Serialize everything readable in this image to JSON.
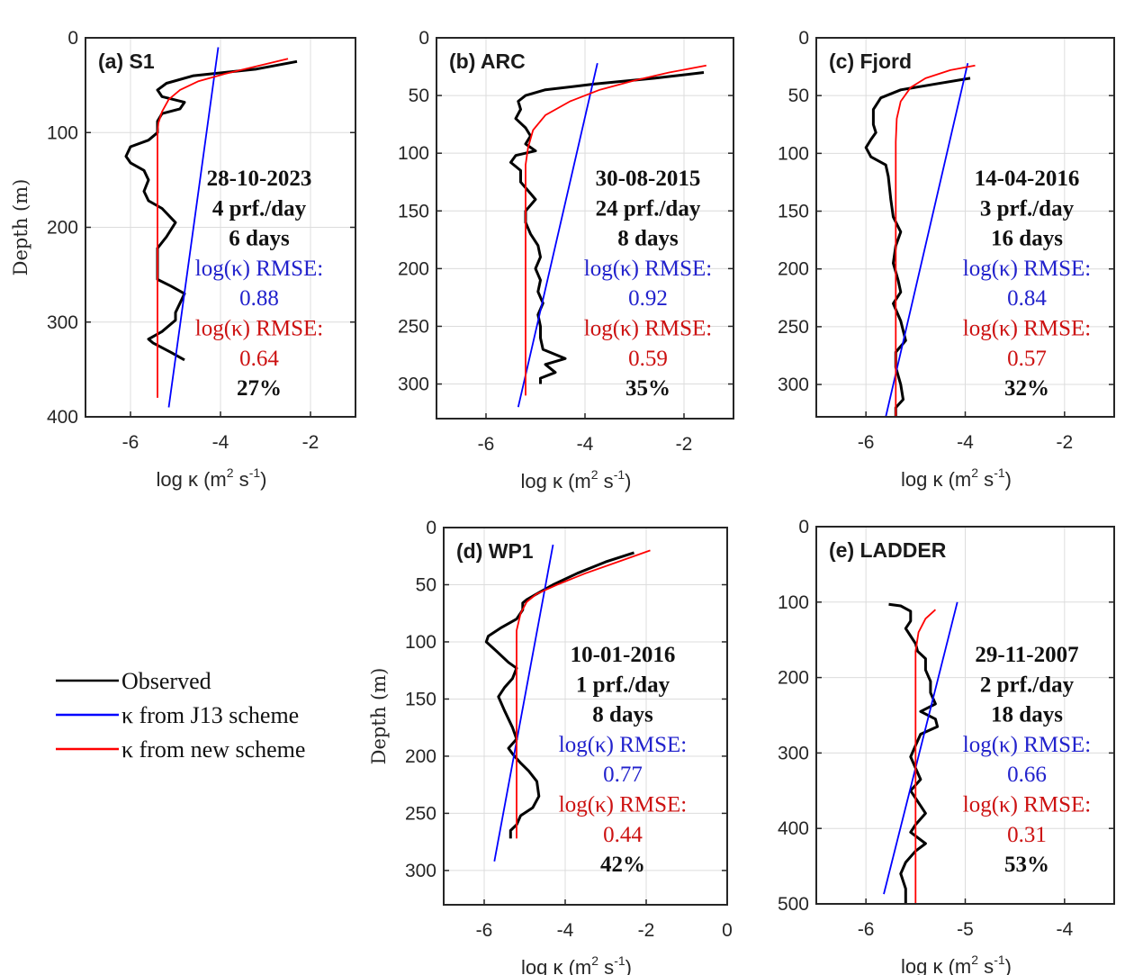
{
  "figure": {
    "legend": [
      {
        "label": "Observed",
        "color": "#000000"
      },
      {
        "label": "κ from J13 scheme",
        "color": "#0000ff"
      },
      {
        "label": "κ from new scheme",
        "color": "#ff0000"
      }
    ]
  },
  "chart_data": [
    {
      "type": "line",
      "title": "(a) S1",
      "xlabel": "log κ (m² s⁻¹)",
      "ylabel": "Depth (m)",
      "xlim": [
        -7,
        -1
      ],
      "ylim": [
        0,
        400
      ],
      "y_reversed": true,
      "xticks": [
        -6,
        -4,
        -2
      ],
      "yticks": [
        0,
        100,
        200,
        300,
        400
      ],
      "grid": true,
      "annotation": {
        "date": "28-10-2023",
        "rate": "4 prf./day",
        "duration": "6 days",
        "rmse_label": "log(κ) RMSE:",
        "rmse_j13": "0.88",
        "rmse_new": "0.64",
        "improvement": "27%"
      },
      "series": [
        {
          "name": "Observed",
          "color": "#000000",
          "points": [
            [
              -2.3,
              25
            ],
            [
              -3.2,
              33
            ],
            [
              -4.6,
              40
            ],
            [
              -5.2,
              48
            ],
            [
              -5.4,
              55
            ],
            [
              -5.3,
              62
            ],
            [
              -4.8,
              68
            ],
            [
              -4.9,
              75
            ],
            [
              -5.3,
              80
            ],
            [
              -5.4,
              88
            ],
            [
              -5.4,
              100
            ],
            [
              -5.6,
              108
            ],
            [
              -6.0,
              115
            ],
            [
              -6.1,
              125
            ],
            [
              -6.0,
              132
            ],
            [
              -5.7,
              140
            ],
            [
              -5.6,
              150
            ],
            [
              -5.7,
              162
            ],
            [
              -5.6,
              172
            ],
            [
              -5.3,
              180
            ],
            [
              -5.0,
              195
            ],
            [
              -5.2,
              210
            ],
            [
              -5.4,
              222
            ],
            [
              -5.4,
              240
            ],
            [
              -5.4,
              255
            ],
            [
              -5.1,
              262
            ],
            [
              -4.8,
              270
            ],
            [
              -4.9,
              280
            ],
            [
              -5.0,
              290
            ],
            [
              -5.0,
              298
            ],
            [
              -5.3,
              310
            ],
            [
              -5.6,
              318
            ],
            [
              -5.5,
              322
            ],
            [
              -5.1,
              332
            ],
            [
              -4.8,
              340
            ]
          ]
        },
        {
          "name": "κ from J13 scheme",
          "color": "#0000ff",
          "points": [
            [
              -4.05,
              10
            ],
            [
              -5.15,
              390
            ]
          ]
        },
        {
          "name": "κ from new scheme",
          "color": "#ff0000",
          "points": [
            [
              -2.5,
              22
            ],
            [
              -3.2,
              30
            ],
            [
              -3.9,
              38
            ],
            [
              -4.5,
              46
            ],
            [
              -4.9,
              55
            ],
            [
              -5.15,
              65
            ],
            [
              -5.3,
              78
            ],
            [
              -5.38,
              90
            ],
            [
              -5.4,
              100
            ],
            [
              -5.4,
              380
            ]
          ]
        }
      ]
    },
    {
      "type": "line",
      "title": "(b) ARC",
      "xlabel": "log κ (m² s⁻¹)",
      "ylabel": "",
      "xlim": [
        -7,
        -1
      ],
      "ylim": [
        0,
        330
      ],
      "y_reversed": true,
      "xticks": [
        -6,
        -4,
        -2
      ],
      "yticks": [
        0,
        50,
        100,
        150,
        200,
        250,
        300
      ],
      "grid": true,
      "annotation": {
        "date": "30-08-2015",
        "rate": "24 prf./day",
        "duration": "8 days",
        "rmse_label": "log(κ) RMSE:",
        "rmse_j13": "0.92",
        "rmse_new": "0.59",
        "improvement": "35%"
      },
      "series": [
        {
          "name": "Observed",
          "color": "#000000",
          "points": [
            [
              -1.6,
              30
            ],
            [
              -2.6,
              35
            ],
            [
              -3.8,
              40
            ],
            [
              -4.8,
              45
            ],
            [
              -5.2,
              50
            ],
            [
              -5.35,
              55
            ],
            [
              -5.3,
              62
            ],
            [
              -5.4,
              70
            ],
            [
              -5.2,
              78
            ],
            [
              -5.1,
              85
            ],
            [
              -5.2,
              92
            ],
            [
              -5.0,
              98
            ],
            [
              -5.4,
              102
            ],
            [
              -5.5,
              108
            ],
            [
              -5.3,
              115
            ],
            [
              -5.3,
              125
            ],
            [
              -5.1,
              135
            ],
            [
              -5.0,
              140
            ],
            [
              -5.2,
              150
            ],
            [
              -5.2,
              160
            ],
            [
              -5.1,
              170
            ],
            [
              -4.95,
              180
            ],
            [
              -4.9,
              190
            ],
            [
              -5.0,
              200
            ],
            [
              -4.9,
              210
            ],
            [
              -4.95,
              220
            ],
            [
              -4.85,
              230
            ],
            [
              -4.95,
              240
            ],
            [
              -4.9,
              250
            ],
            [
              -4.9,
              260
            ],
            [
              -4.85,
              270
            ],
            [
              -4.4,
              278
            ],
            [
              -4.8,
              283
            ],
            [
              -4.6,
              290
            ],
            [
              -4.9,
              295
            ],
            [
              -4.9,
              300
            ]
          ]
        },
        {
          "name": "κ from J13 scheme",
          "color": "#0000ff",
          "points": [
            [
              -3.75,
              22
            ],
            [
              -5.35,
              320
            ]
          ]
        },
        {
          "name": "κ from new scheme",
          "color": "#ff0000",
          "points": [
            [
              -1.55,
              24
            ],
            [
              -2.3,
              30
            ],
            [
              -3.0,
              37
            ],
            [
              -3.7,
              45
            ],
            [
              -4.3,
              55
            ],
            [
              -4.8,
              67
            ],
            [
              -5.05,
              80
            ],
            [
              -5.15,
              95
            ],
            [
              -5.2,
              110
            ],
            [
              -5.2,
              310
            ]
          ]
        }
      ]
    },
    {
      "type": "line",
      "title": "(c) Fjord",
      "xlabel": "log κ (m² s⁻¹)",
      "ylabel": "",
      "xlim": [
        -7,
        -1
      ],
      "ylim": [
        0,
        328
      ],
      "y_reversed": true,
      "xticks": [
        -6,
        -4,
        -2
      ],
      "yticks": [
        0,
        50,
        100,
        150,
        200,
        250,
        300
      ],
      "grid": true,
      "annotation": {
        "date": "14-04-2016",
        "rate": "3 prf./day",
        "duration": "16 days",
        "rmse_label": "log(κ) RMSE:",
        "rmse_j13": "0.84",
        "rmse_new": "0.57",
        "improvement": "32%"
      },
      "series": [
        {
          "name": "Observed",
          "color": "#000000",
          "points": [
            [
              -3.9,
              35
            ],
            [
              -4.6,
              40
            ],
            [
              -5.3,
              45
            ],
            [
              -5.7,
              52
            ],
            [
              -5.85,
              62
            ],
            [
              -5.85,
              75
            ],
            [
              -5.8,
              82
            ],
            [
              -5.9,
              88
            ],
            [
              -6.0,
              95
            ],
            [
              -5.9,
              103
            ],
            [
              -5.6,
              110
            ],
            [
              -5.55,
              120
            ],
            [
              -5.5,
              140
            ],
            [
              -5.45,
              155
            ],
            [
              -5.3,
              168
            ],
            [
              -5.4,
              180
            ],
            [
              -5.45,
              195
            ],
            [
              -5.35,
              210
            ],
            [
              -5.3,
              220
            ],
            [
              -5.45,
              230
            ],
            [
              -5.3,
              245
            ],
            [
              -5.2,
              262
            ],
            [
              -5.4,
              272
            ],
            [
              -5.4,
              285
            ],
            [
              -5.3,
              300
            ],
            [
              -5.25,
              313
            ],
            [
              -5.4,
              320
            ],
            [
              -5.4,
              328
            ]
          ]
        },
        {
          "name": "κ from J13 scheme",
          "color": "#0000ff",
          "points": [
            [
              -3.95,
              22
            ],
            [
              -5.6,
              328
            ]
          ]
        },
        {
          "name": "κ from new scheme",
          "color": "#ff0000",
          "points": [
            [
              -3.8,
              24
            ],
            [
              -4.3,
              28
            ],
            [
              -4.8,
              35
            ],
            [
              -5.1,
              43
            ],
            [
              -5.3,
              55
            ],
            [
              -5.38,
              70
            ],
            [
              -5.4,
              90
            ],
            [
              -5.4,
              328
            ]
          ]
        }
      ]
    },
    {
      "type": "line",
      "title": "(d) WP1",
      "xlabel": "log κ (m² s⁻¹)",
      "ylabel": "Depth (m)",
      "xlim": [
        -7,
        0
      ],
      "ylim": [
        0,
        330
      ],
      "y_reversed": true,
      "xticks": [
        -6,
        -4,
        -2,
        0
      ],
      "yticks": [
        0,
        50,
        100,
        150,
        200,
        250,
        300
      ],
      "grid": true,
      "annotation": {
        "date": "10-01-2016",
        "rate": "1 prf./day",
        "duration": "8 days",
        "rmse_label": "log(κ) RMSE:",
        "rmse_j13": "0.77",
        "rmse_new": "0.44",
        "improvement": "42%"
      },
      "series": [
        {
          "name": "Observed",
          "color": "#000000",
          "points": [
            [
              -2.3,
              22
            ],
            [
              -3.0,
              30
            ],
            [
              -3.7,
              40
            ],
            [
              -4.3,
              50
            ],
            [
              -4.7,
              58
            ],
            [
              -4.95,
              63
            ],
            [
              -5.05,
              66
            ],
            [
              -5.05,
              72
            ],
            [
              -5.2,
              80
            ],
            [
              -5.6,
              88
            ],
            [
              -5.9,
              95
            ],
            [
              -5.95,
              100
            ],
            [
              -5.7,
              108
            ],
            [
              -5.4,
              118
            ],
            [
              -5.2,
              123
            ],
            [
              -5.3,
              132
            ],
            [
              -5.5,
              140
            ],
            [
              -5.65,
              148
            ],
            [
              -5.5,
              160
            ],
            [
              -5.3,
              175
            ],
            [
              -5.2,
              185
            ],
            [
              -5.4,
              193
            ],
            [
              -5.3,
              198
            ],
            [
              -5.1,
              206
            ],
            [
              -4.9,
              213
            ],
            [
              -4.7,
              222
            ],
            [
              -4.65,
              235
            ],
            [
              -4.8,
              245
            ],
            [
              -5.1,
              252
            ],
            [
              -5.2,
              260
            ],
            [
              -5.35,
              265
            ],
            [
              -5.35,
              272
            ]
          ]
        },
        {
          "name": "κ from J13 scheme",
          "color": "#0000ff",
          "points": [
            [
              -4.3,
              15
            ],
            [
              -5.75,
              292
            ]
          ]
        },
        {
          "name": "κ from new scheme",
          "color": "#ff0000",
          "points": [
            [
              -1.9,
              20
            ],
            [
              -2.7,
              30
            ],
            [
              -3.5,
              40
            ],
            [
              -4.2,
              50
            ],
            [
              -4.7,
              58
            ],
            [
              -4.95,
              65
            ],
            [
              -5.1,
              75
            ],
            [
              -5.2,
              90
            ],
            [
              -5.2,
              272
            ]
          ]
        }
      ]
    },
    {
      "type": "line",
      "title": "(e) LADDER",
      "xlabel": "log κ (m² s⁻¹)",
      "ylabel": "",
      "xlim": [
        -6.5,
        -3.5
      ],
      "ylim": [
        0,
        500
      ],
      "y_reversed": true,
      "xticks": [
        -6,
        -5,
        -4
      ],
      "yticks": [
        0,
        100,
        200,
        300,
        400,
        500
      ],
      "grid": true,
      "annotation": {
        "date": "29-11-2007",
        "rate": "2 prf./day",
        "duration": "18 days",
        "rmse_label": "log(κ) RMSE:",
        "rmse_j13": "0.66",
        "rmse_new": "0.31",
        "improvement": "53%"
      },
      "series": [
        {
          "name": "Observed",
          "color": "#000000",
          "points": [
            [
              -5.77,
              103
            ],
            [
              -5.65,
              105
            ],
            [
              -5.55,
              112
            ],
            [
              -5.55,
              125
            ],
            [
              -5.6,
              135
            ],
            [
              -5.55,
              145
            ],
            [
              -5.5,
              155
            ],
            [
              -5.48,
              165
            ],
            [
              -5.4,
              175
            ],
            [
              -5.4,
              190
            ],
            [
              -5.35,
              205
            ],
            [
              -5.35,
              220
            ],
            [
              -5.3,
              235
            ],
            [
              -5.45,
              245
            ],
            [
              -5.3,
              255
            ],
            [
              -5.28,
              265
            ],
            [
              -5.45,
              275
            ],
            [
              -5.5,
              290
            ],
            [
              -5.55,
              305
            ],
            [
              -5.5,
              320
            ],
            [
              -5.45,
              335
            ],
            [
              -5.55,
              350
            ],
            [
              -5.45,
              370
            ],
            [
              -5.4,
              380
            ],
            [
              -5.5,
              395
            ],
            [
              -5.55,
              405
            ],
            [
              -5.4,
              420
            ],
            [
              -5.5,
              430
            ],
            [
              -5.6,
              445
            ],
            [
              -5.65,
              460
            ],
            [
              -5.6,
              480
            ],
            [
              -5.6,
              500
            ]
          ]
        },
        {
          "name": "κ from J13 scheme",
          "color": "#0000ff",
          "points": [
            [
              -5.08,
              100
            ],
            [
              -5.82,
              487
            ]
          ]
        },
        {
          "name": "κ from new scheme",
          "color": "#ff0000",
          "points": [
            [
              -5.3,
              110
            ],
            [
              -5.4,
              122
            ],
            [
              -5.47,
              140
            ],
            [
              -5.5,
              165
            ],
            [
              -5.5,
              500
            ]
          ]
        }
      ]
    }
  ]
}
